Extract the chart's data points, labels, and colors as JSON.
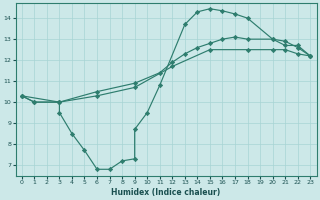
{
  "xlabel": "Humidex (Indice chaleur)",
  "line_color": "#2e7d6e",
  "background_color": "#cce8e8",
  "grid_color": "#a8d4d4",
  "xlim": [
    -0.5,
    23.5
  ],
  "ylim": [
    6.5,
    14.7
  ],
  "xticks": [
    0,
    1,
    2,
    3,
    4,
    5,
    6,
    7,
    8,
    9,
    10,
    11,
    12,
    13,
    14,
    15,
    16,
    17,
    18,
    19,
    20,
    21,
    22,
    23
  ],
  "yticks": [
    7,
    8,
    9,
    10,
    11,
    12,
    13,
    14
  ],
  "series1_x": [
    0,
    1,
    3,
    3,
    4,
    5,
    6,
    7,
    8,
    9,
    9,
    10,
    11,
    13,
    14,
    15,
    16,
    17,
    18,
    20,
    21,
    22,
    23
  ],
  "series1_y": [
    10.3,
    10.0,
    10.0,
    9.5,
    8.5,
    7.7,
    6.8,
    6.8,
    7.2,
    7.3,
    8.7,
    9.5,
    10.8,
    13.7,
    14.3,
    14.45,
    14.35,
    14.2,
    14.0,
    13.0,
    12.7,
    12.7,
    12.2
  ],
  "series2_x": [
    0,
    1,
    3,
    6,
    9,
    11,
    12,
    13,
    14,
    15,
    16,
    17,
    18,
    20,
    21,
    22,
    23
  ],
  "series2_y": [
    10.3,
    10.0,
    10.0,
    10.5,
    10.9,
    11.4,
    11.9,
    12.3,
    12.6,
    12.8,
    13.0,
    13.1,
    13.0,
    13.0,
    12.9,
    12.6,
    12.2
  ],
  "series3_x": [
    0,
    3,
    6,
    9,
    12,
    15,
    18,
    20,
    21,
    22,
    23
  ],
  "series3_y": [
    10.3,
    10.0,
    10.3,
    10.7,
    11.7,
    12.5,
    12.5,
    12.5,
    12.5,
    12.3,
    12.2
  ]
}
